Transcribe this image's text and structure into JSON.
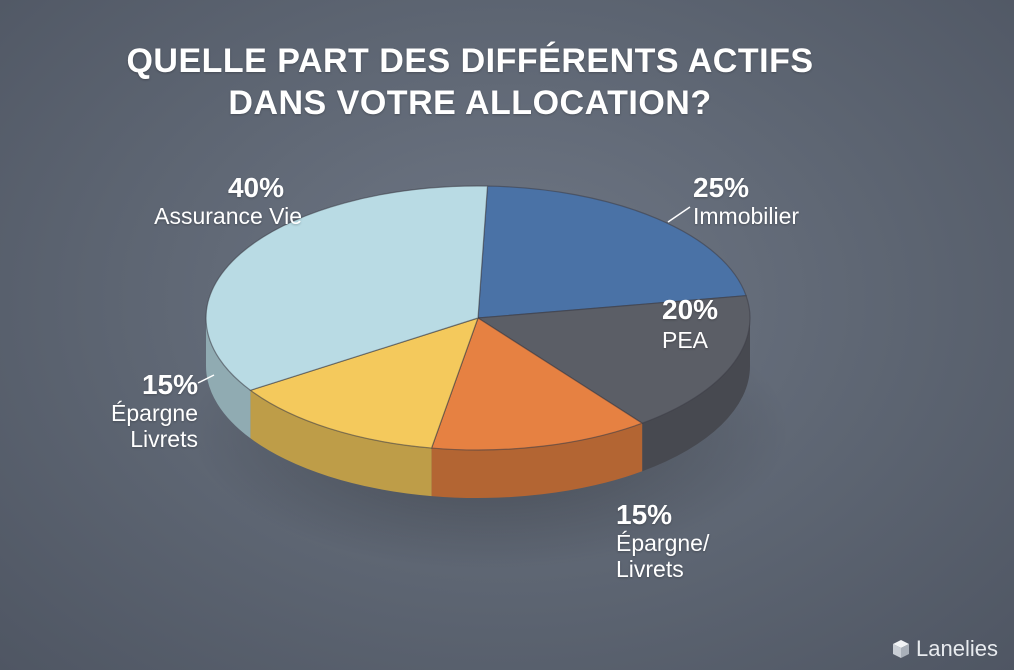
{
  "title_lines": [
    "QUELLE PART DES DIFFÉRENTS ACTIFS",
    "DANS VOTRE ALLOCATION?"
  ],
  "chart_data": {
    "type": "pie",
    "title": "QUELLE PART DES DIFFÉRENTS ACTIFS DANS VOTRE ALLOCATION?",
    "labels": [
      {
        "category": "Immobilier",
        "value_label": "25%"
      },
      {
        "category": "PEA",
        "value_label": "20%"
      },
      {
        "category": "Épargne/ Livrets",
        "value_label": "15%"
      },
      {
        "category": "Épargne Livrets",
        "value_label": "15%"
      },
      {
        "category": "Assurance Vie",
        "value_label": "40%"
      }
    ],
    "slices": [
      {
        "label": "Immobilier",
        "value": 25,
        "color": "#4a72a6"
      },
      {
        "label": "PEA",
        "value": 20,
        "color": "#5b5e66"
      },
      {
        "label": "Épargne/ Livrets",
        "value": 15,
        "color": "#e68142"
      },
      {
        "label": "Épargne Livrets",
        "value": 15,
        "color": "#f4c95c"
      },
      {
        "label": "Assurance Vie",
        "value": 40,
        "color": "#b9dbe4"
      }
    ]
  },
  "labels": {
    "assurance": {
      "pct": "40%",
      "name": "Assurance Vie"
    },
    "immobilier": {
      "pct": "25%",
      "name": "Immobilier"
    },
    "pea": {
      "pct": "20%",
      "name": "PEA"
    },
    "epargne_left": {
      "pct": "15%",
      "name1": "Épargne",
      "name2": "Livrets"
    },
    "epargne_bottom": {
      "pct": "15%",
      "name1": "Épargne/",
      "name2": "Livrets"
    }
  },
  "watermark": "Lanelies"
}
